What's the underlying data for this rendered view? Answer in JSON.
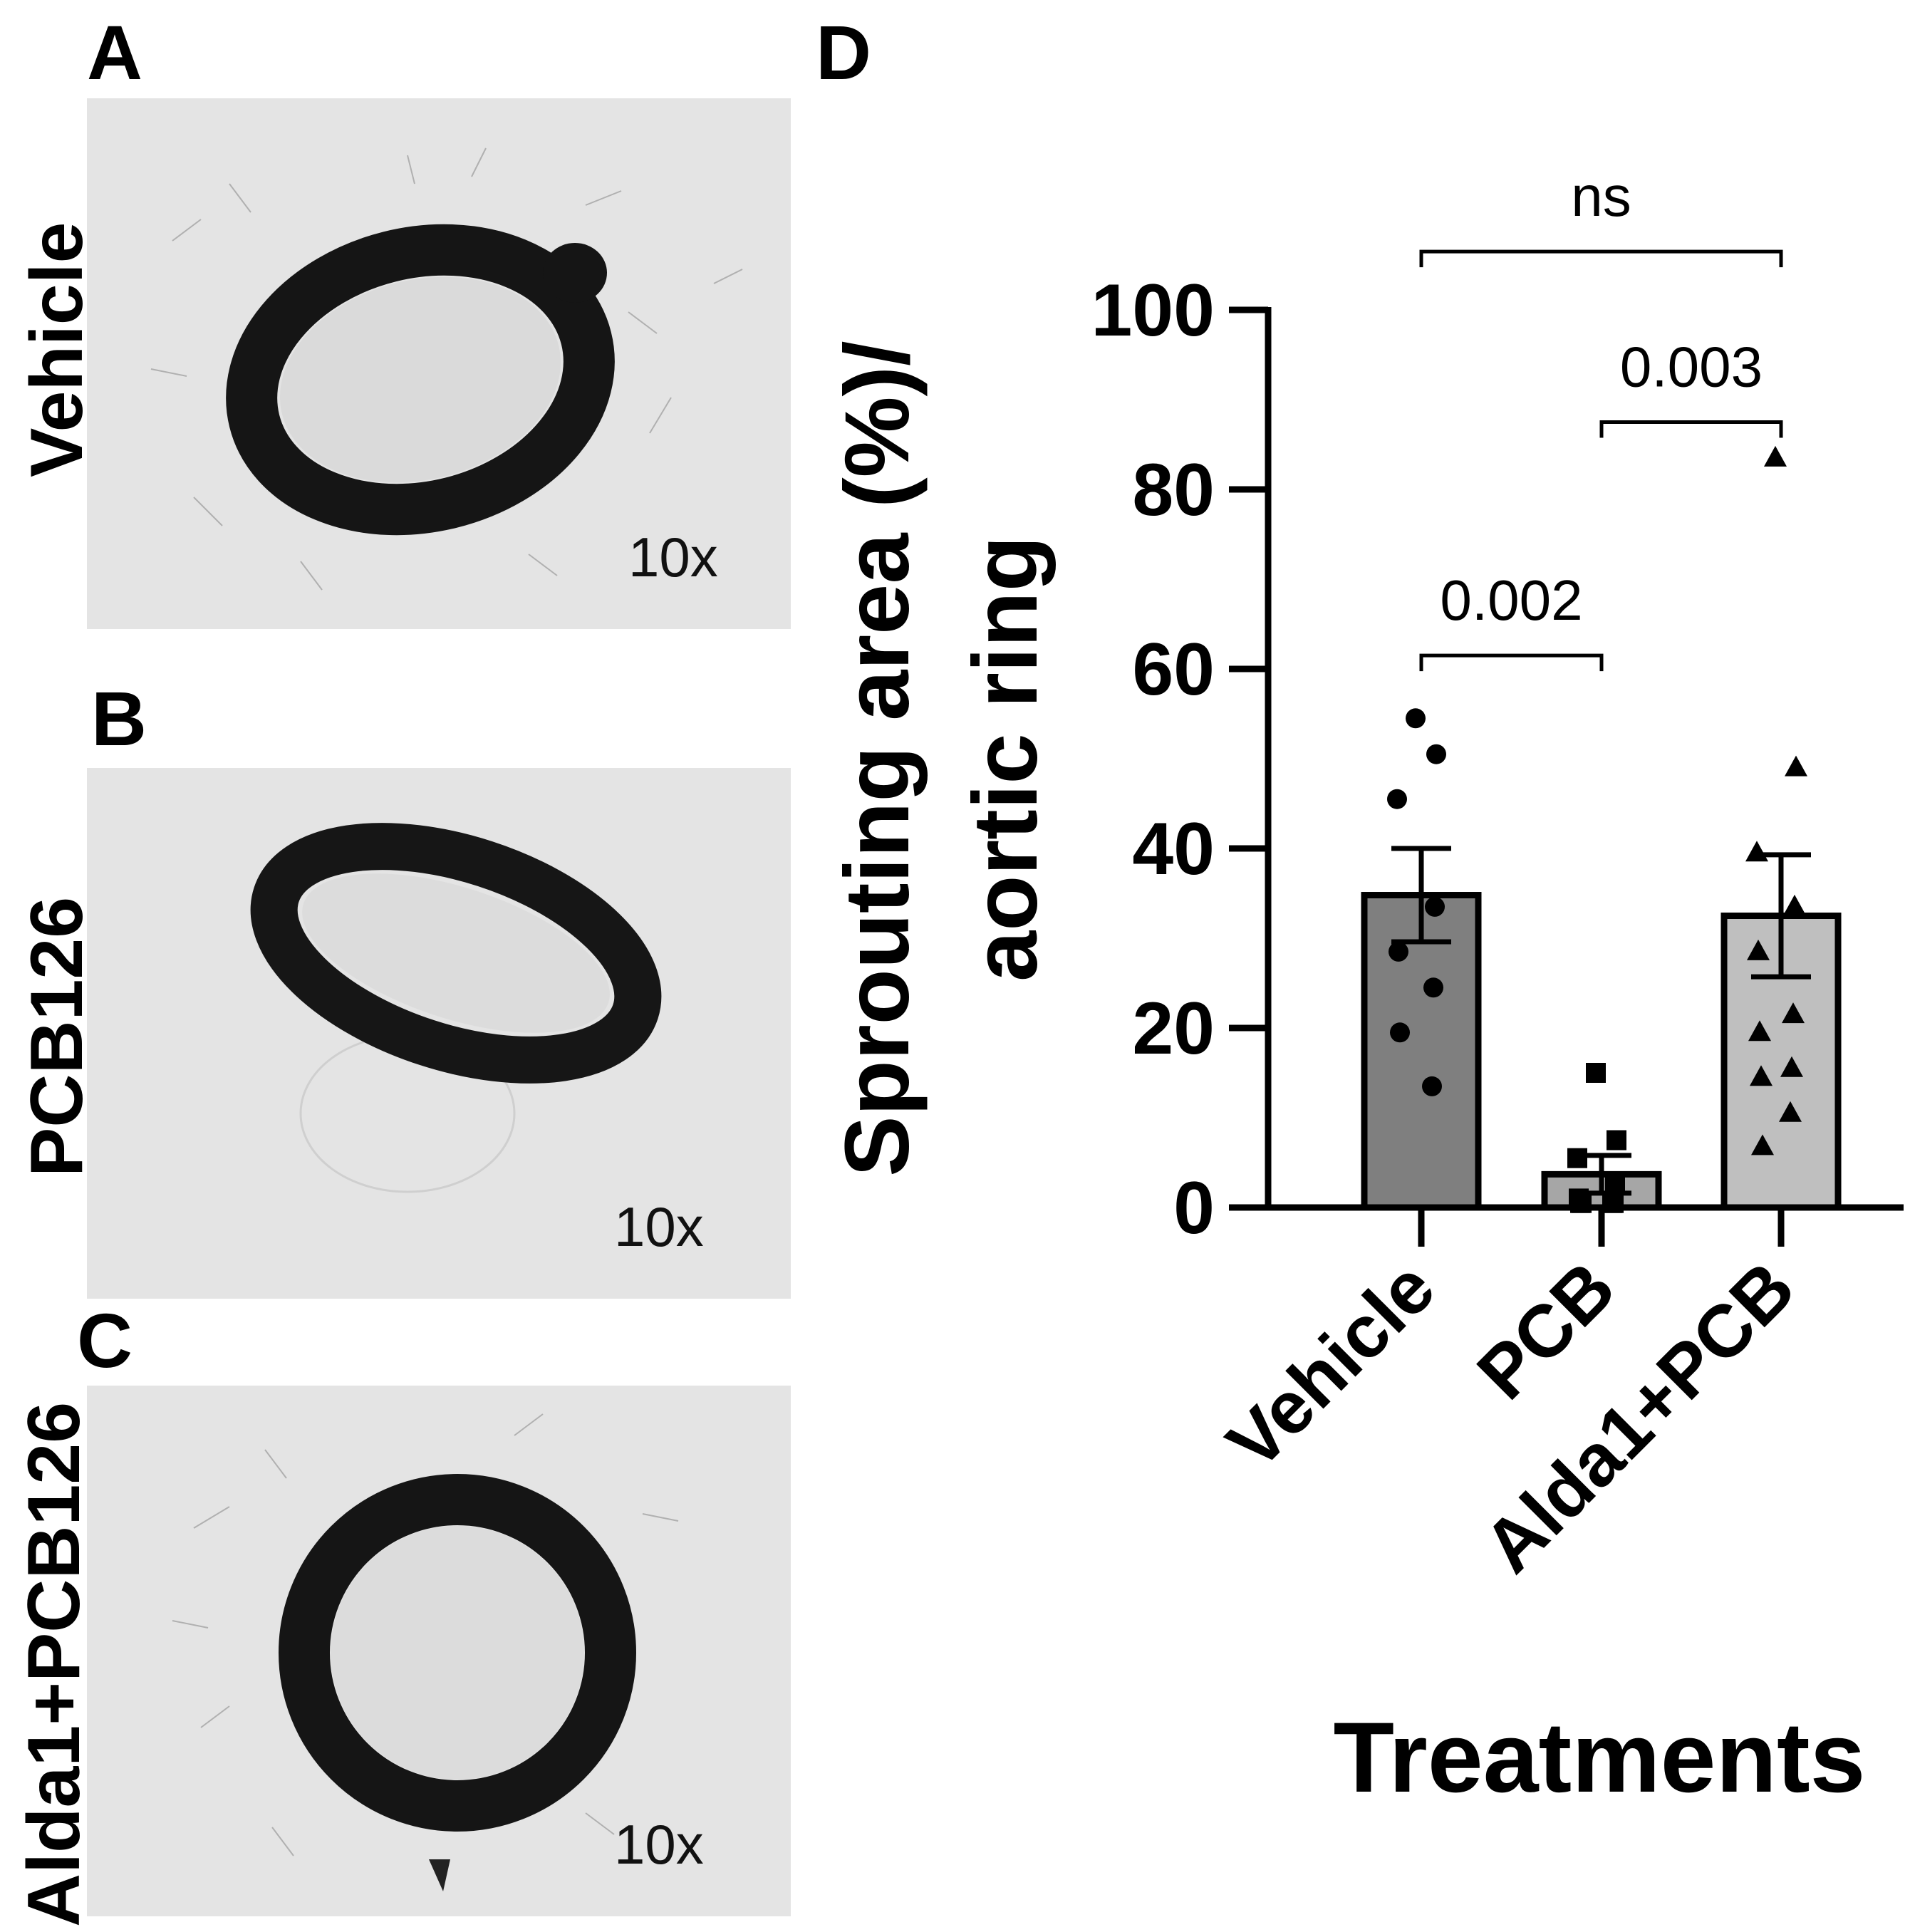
{
  "panels": [
    {
      "letter": "A",
      "row_label": "Vehicle",
      "magnification": "10x"
    },
    {
      "letter": "B",
      "row_label": "PCB126",
      "magnification": "10x"
    },
    {
      "letter": "C",
      "row_label": "Alda1+PCB126",
      "magnification": "10x"
    }
  ],
  "chart_panel_letter": "D",
  "chart_data": {
    "type": "bar",
    "categories": [
      "Vehicle",
      "PCB",
      "Alda1+PCB"
    ],
    "ylabel_line1": "Sprouting area (%)/",
    "ylabel_line2": "aortic ring",
    "xlabel": "Treatments",
    "ylim": [
      0,
      100
    ],
    "yticks": [
      0,
      20,
      40,
      60,
      80,
      100
    ],
    "bar_colors": [
      "#7f7f7f",
      "#a6a6a6",
      "#bfbfbf"
    ],
    "marker_shapes": [
      "circle",
      "square",
      "triangle"
    ],
    "means": [
      34.8,
      3.7,
      32.5
    ],
    "sem": [
      5.2,
      2.1,
      6.8
    ],
    "points": [
      [
        54.5,
        50.5,
        45.5,
        33.5,
        28.5,
        24.5,
        19.5,
        13.5
      ],
      [
        15.0,
        7.5,
        5.5,
        2.5,
        1.0,
        0.5,
        0.5,
        0.5,
        0.5
      ],
      [
        83.5,
        49.0,
        39.5,
        33.5,
        28.5,
        21.5,
        19.5,
        15.5,
        14.5,
        10.5,
        6.8
      ]
    ],
    "comparisons": [
      {
        "from": 0,
        "to": 1,
        "y": 61.5,
        "label": "0.002"
      },
      {
        "from": 1,
        "to": 2,
        "y": 87.5,
        "label": "0.003"
      },
      {
        "from": 0,
        "to": 2,
        "y": 106.5,
        "label": "ns"
      }
    ]
  }
}
